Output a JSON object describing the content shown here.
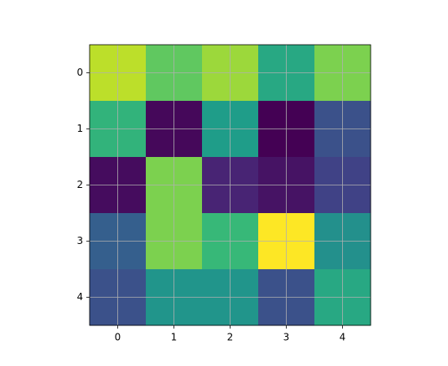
{
  "chart_data": {
    "type": "heatmap",
    "colormap": "viridis",
    "values": [
      [
        0.9,
        0.75,
        0.85,
        0.6,
        0.8
      ],
      [
        0.65,
        0.02,
        0.55,
        0.0,
        0.25
      ],
      [
        0.03,
        0.8,
        0.1,
        0.05,
        0.2
      ],
      [
        0.3,
        0.8,
        0.67,
        1.0,
        0.5
      ],
      [
        0.25,
        0.52,
        0.52,
        0.25,
        0.6
      ]
    ],
    "xlim": [
      -0.5,
      4.5
    ],
    "ylim": [
      4.5,
      -0.5
    ],
    "xticks": [
      0,
      1,
      2,
      3,
      4
    ],
    "yticks": [
      0,
      1,
      2,
      3,
      4
    ],
    "grid": true
  }
}
